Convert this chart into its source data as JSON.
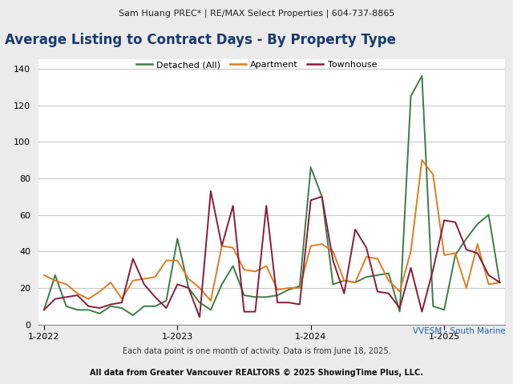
{
  "header": "Sam Huang PREC* | RE/MAX Select Properties | 604-737-8865",
  "title": "Average Listing to Contract Days - By Property Type",
  "footer1": "Each data point is one month of activity. Data is from June 18, 2025.",
  "footer2": "All data from Greater Vancouver REALTORS © 2025 ShowingTime Plus, LLC.",
  "watermark": "VVESM - South Marine",
  "legend_labels": [
    "Detached (All)",
    "Apartment",
    "Townhouse"
  ],
  "colors": {
    "detached": "#3a7d44",
    "apartment": "#e07b20",
    "townhouse": "#8b1a3a"
  },
  "x_tick_labels": [
    "1-2022",
    "1-2023",
    "1-2024",
    "1-2025"
  ],
  "ylim": [
    0,
    145
  ],
  "yticks": [
    0,
    20,
    40,
    60,
    80,
    100,
    120,
    140
  ],
  "detached": [
    8,
    27,
    10,
    8,
    8,
    6,
    10,
    9,
    5,
    10,
    10,
    13,
    47,
    20,
    12,
    8,
    22,
    32,
    16,
    15,
    15,
    16,
    19,
    21,
    86,
    70,
    22,
    24,
    23,
    26,
    27,
    28,
    7,
    125,
    136,
    10,
    8,
    38,
    47,
    55,
    60,
    23
  ],
  "apartment": [
    27,
    24,
    22,
    17,
    14,
    18,
    23,
    14,
    24,
    25,
    26,
    35,
    35,
    25,
    20,
    13,
    43,
    42,
    30,
    29,
    32,
    19,
    20,
    20,
    43,
    44,
    40,
    24,
    23,
    37,
    36,
    24,
    18,
    40,
    90,
    82,
    38,
    39,
    20,
    44,
    22,
    23
  ],
  "townhouse": [
    8,
    14,
    15,
    16,
    10,
    9,
    11,
    12,
    36,
    22,
    15,
    9,
    22,
    20,
    4,
    73,
    43,
    65,
    7,
    7,
    65,
    12,
    12,
    11,
    68,
    70,
    35,
    17,
    52,
    42,
    18,
    17,
    9,
    31,
    7,
    30,
    57,
    56,
    41,
    39,
    27,
    23
  ],
  "header_fontsize": 8,
  "title_fontsize": 12,
  "legend_fontsize": 8,
  "tick_fontsize": 8,
  "footer_fontsize": 7,
  "footer2_fontsize": 7,
  "background_color": "#ebebeb"
}
